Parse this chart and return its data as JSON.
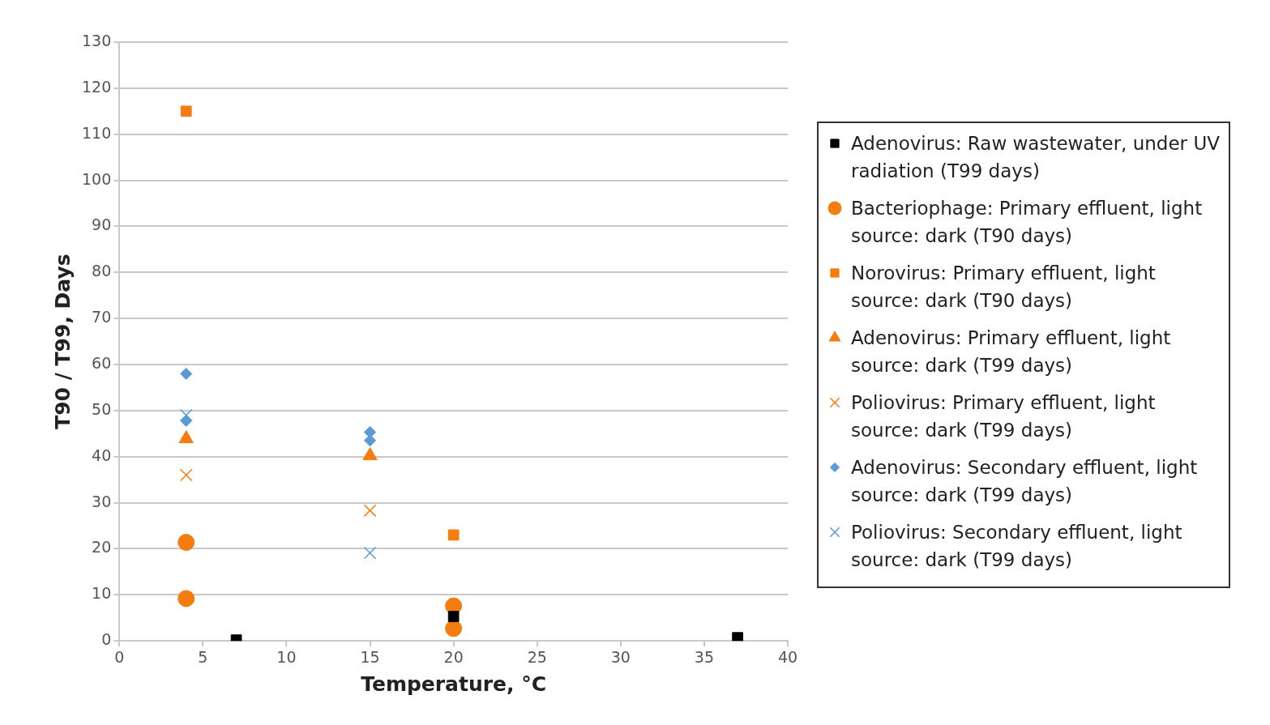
{
  "chart_data": {
    "type": "scatter",
    "xlabel": "Temperature, °C",
    "ylabel": "T90 / T99, Days",
    "xlim": [
      0,
      40
    ],
    "xticks": [
      0,
      5,
      10,
      15,
      20,
      25,
      30,
      35,
      40
    ],
    "ylim": [
      0,
      130
    ],
    "yticks": [
      0,
      10,
      20,
      30,
      40,
      50,
      60,
      70,
      80,
      90,
      100,
      110,
      120,
      130
    ],
    "grid": "y",
    "legend": "right",
    "series": [
      {
        "name": "Adenovirus: Raw wastewater, under UV radiation (T99 days)",
        "color": "#000000",
        "marker": "square",
        "x": [
          7,
          20,
          37
        ],
        "values": [
          0.2,
          5.3,
          0.7
        ]
      },
      {
        "name": "Bacteriophage: Primary effluent, light source: dark (T90 days)",
        "color": "#f57c0e",
        "marker": "circle",
        "x": [
          4,
          4,
          20,
          20
        ],
        "values": [
          21.4,
          9.2,
          7.6,
          2.7
        ]
      },
      {
        "name": "Norovirus: Primary effluent, light source: dark (T90 days)",
        "color": "#f57c0e",
        "marker": "square",
        "x": [
          4,
          20
        ],
        "values": [
          115,
          23
        ]
      },
      {
        "name": "Adenovirus: Primary effluent, light source: dark (T99 days)",
        "color": "#f57c0e",
        "marker": "triangle",
        "x": [
          4,
          15
        ],
        "values": [
          43.9,
          40.2
        ]
      },
      {
        "name": "Poliovirus: Primary effluent, light source: dark (T99 days)",
        "color": "#f57c0e",
        "marker": "cross",
        "x": [
          4,
          15
        ],
        "values": [
          36,
          28.3
        ]
      },
      {
        "name": "Adenovirus: Secondary effluent, light source: dark (T99 days)",
        "color": "#5b9bd5",
        "marker": "diamond",
        "x": [
          4,
          4,
          15,
          15
        ],
        "values": [
          58,
          47.8,
          45.3,
          43.5
        ]
      },
      {
        "name": "Poliovirus: Secondary effluent, light source: dark (T99 days)",
        "color": "#5b9bd5",
        "marker": "cross",
        "x": [
          4,
          15
        ],
        "values": [
          49,
          19.1
        ]
      }
    ]
  }
}
